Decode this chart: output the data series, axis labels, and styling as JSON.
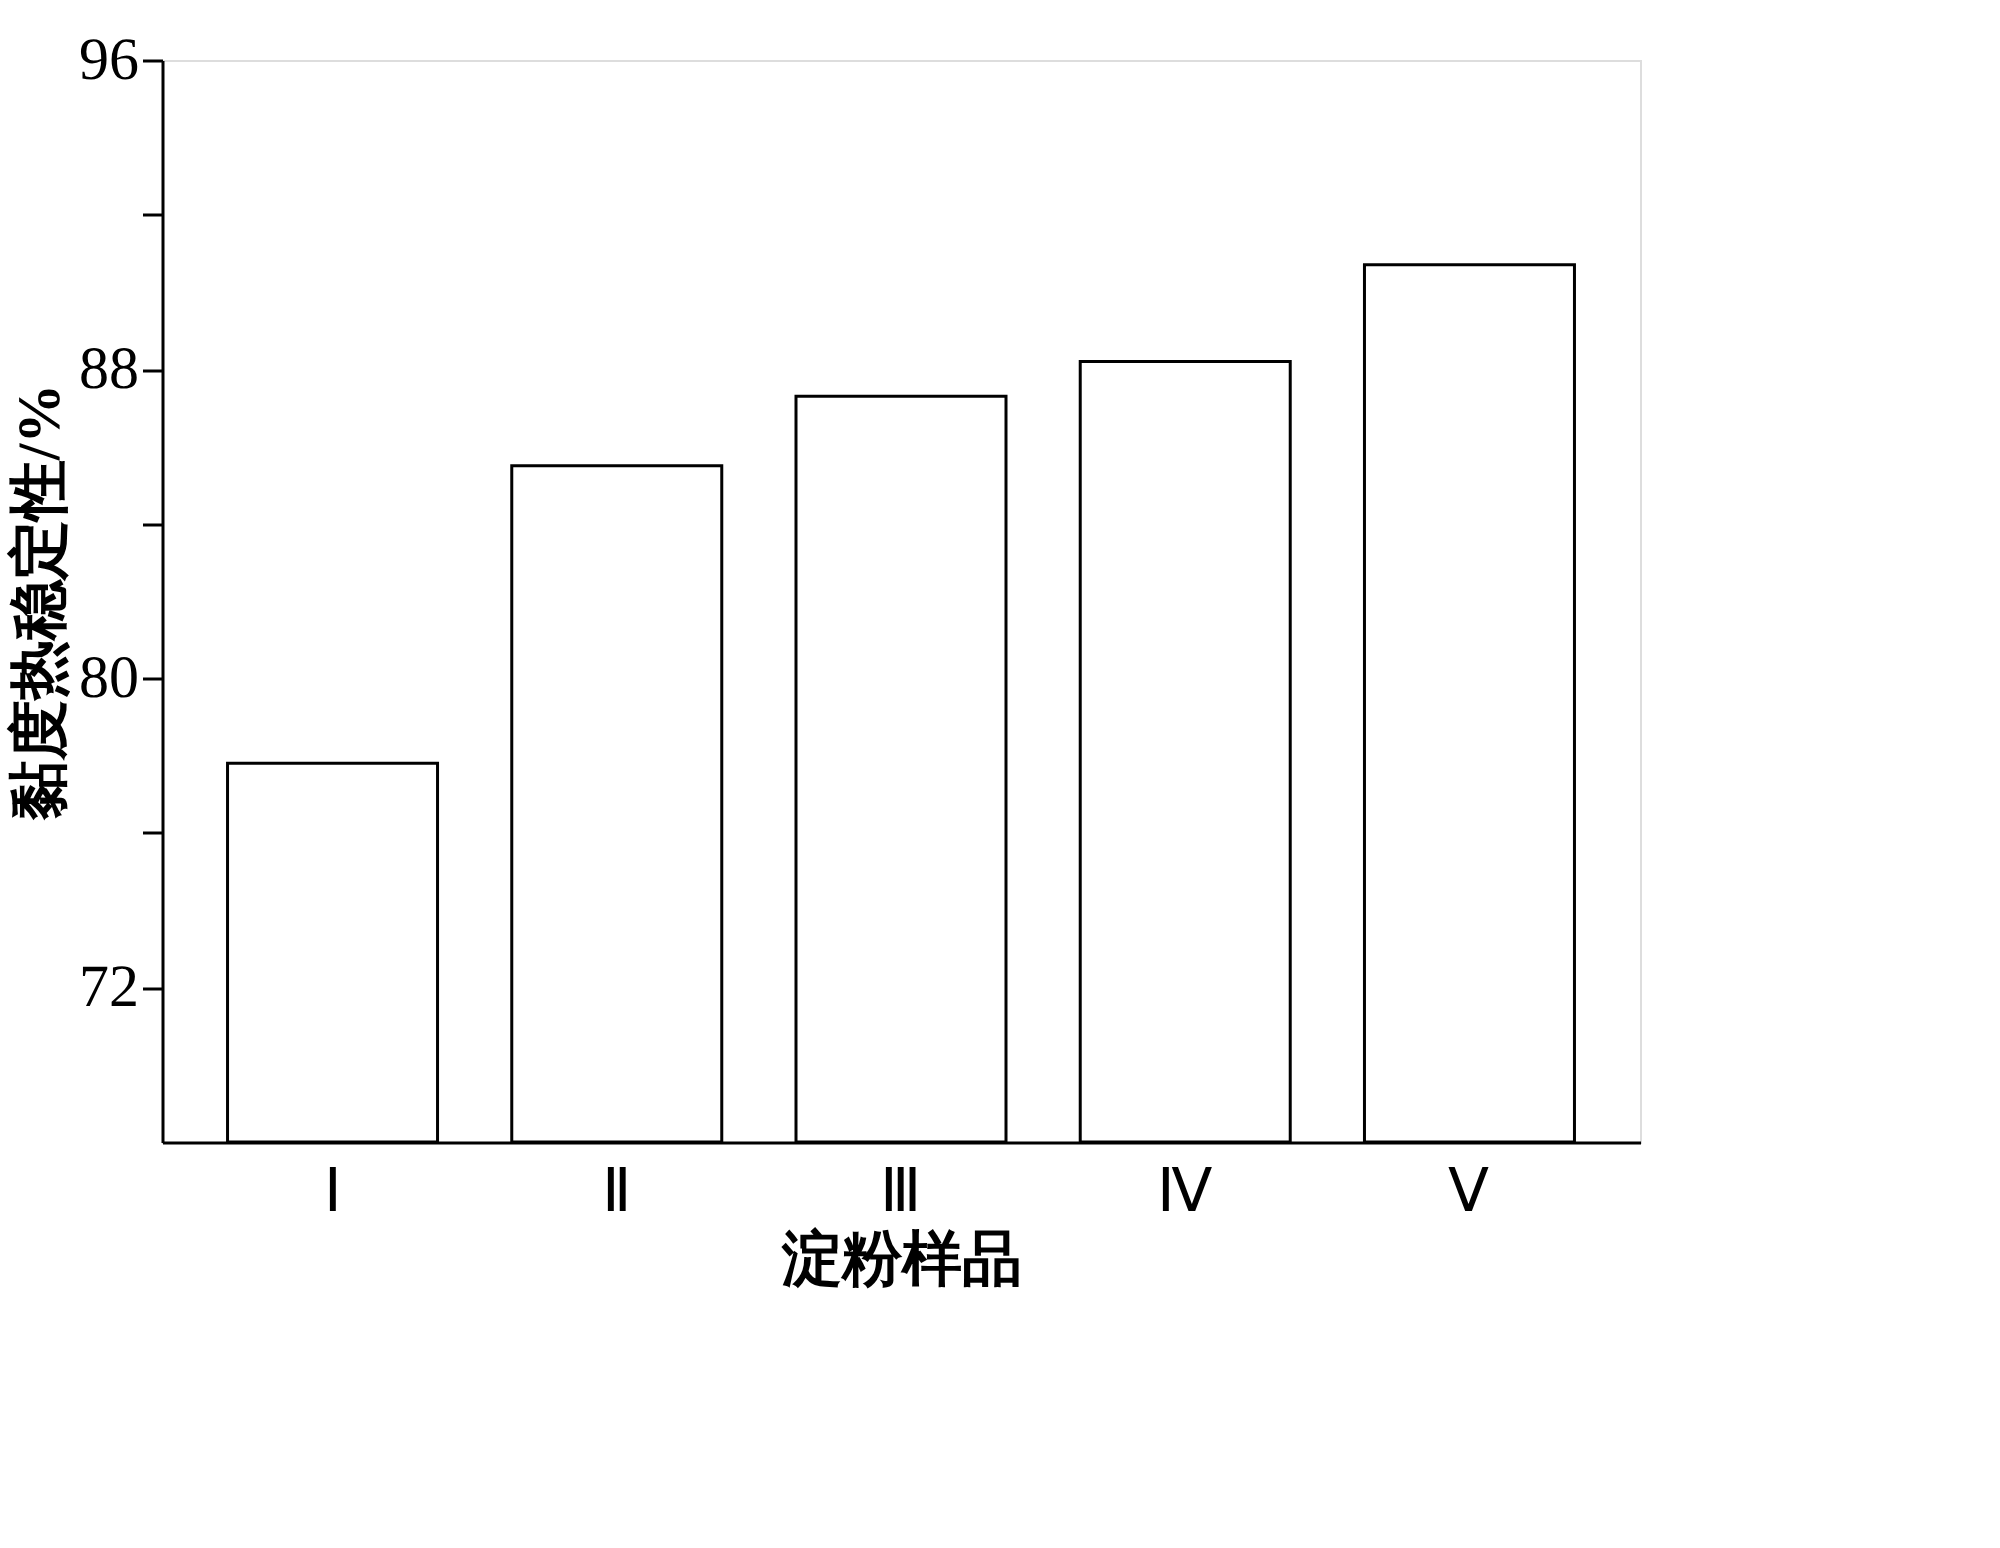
{
  "chart_data": {
    "type": "bar",
    "xlabel": "淀粉样品",
    "ylabel": "黏度热稳定性/%",
    "categories": [
      "Ⅰ",
      "Ⅱ",
      "Ⅲ",
      "Ⅳ",
      "Ⅴ"
    ],
    "values": [
      77.8,
      85.5,
      87.3,
      88.2,
      90.7
    ],
    "color": "#ffffff",
    "ylim": [
      68,
      96
    ],
    "yticks": [
      72,
      {
        "value": 76,
        "label": null
      },
      80,
      {
        "value": 84,
        "label": null
      },
      88,
      {
        "value": 92,
        "label": null
      },
      96
    ],
    "grid": false
  }
}
